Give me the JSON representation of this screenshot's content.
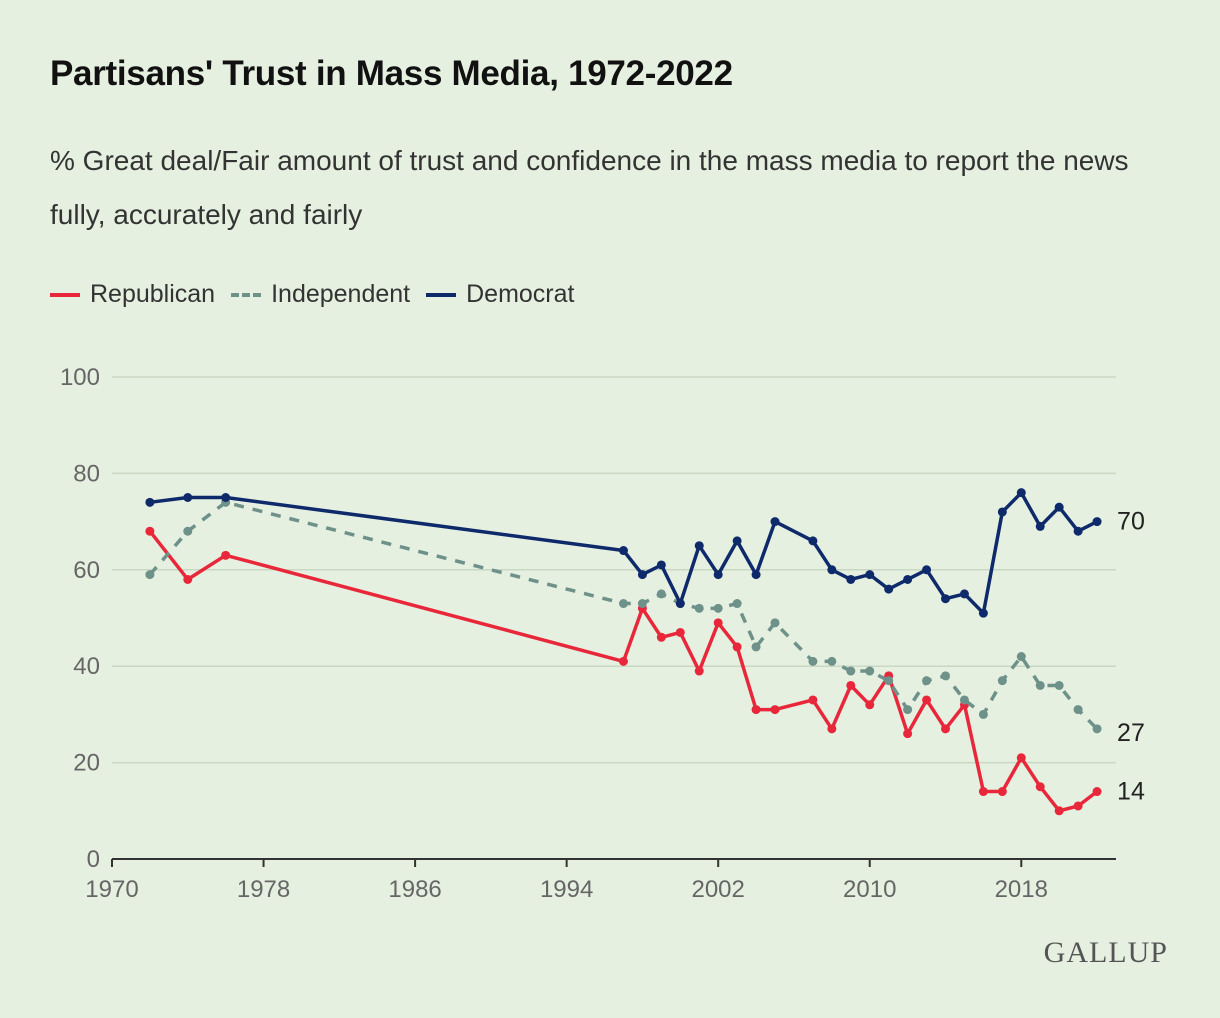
{
  "chart_data": {
    "type": "line",
    "title": "Partisans' Trust in Mass Media, 1972-2022",
    "subtitle": "% Great deal/Fair amount of trust and confidence in the mass media to report the news fully, accurately and fairly",
    "xlabel": "",
    "ylabel": "",
    "xlim": [
      1970,
      2023
    ],
    "ylim": [
      0,
      100
    ],
    "x_ticks": [
      "1970",
      "1978",
      "1986",
      "1994",
      "2002",
      "2010",
      "2018"
    ],
    "y_ticks": [
      "0",
      "20",
      "40",
      "60",
      "80",
      "100"
    ],
    "grid": true,
    "legend_position": "top-left",
    "series": [
      {
        "name": "Republican",
        "color": "#e8283a",
        "style": "solid",
        "end_label": "14",
        "x": [
          1972,
          1974,
          1976,
          1997,
          1998,
          1999,
          2000,
          2001,
          2002,
          2003,
          2004,
          2005,
          2007,
          2008,
          2009,
          2010,
          2011,
          2012,
          2013,
          2014,
          2015,
          2016,
          2017,
          2018,
          2019,
          2020,
          2021,
          2022
        ],
        "y": [
          68,
          58,
          63,
          41,
          52,
          46,
          47,
          39,
          49,
          44,
          31,
          31,
          33,
          27,
          36,
          32,
          38,
          26,
          33,
          27,
          32,
          14,
          14,
          21,
          15,
          10,
          11,
          14
        ]
      },
      {
        "name": "Independent",
        "color": "#6e918a",
        "style": "dashed",
        "end_label": "27",
        "x": [
          1972,
          1974,
          1976,
          1997,
          1998,
          1999,
          2000,
          2001,
          2002,
          2003,
          2004,
          2005,
          2007,
          2008,
          2009,
          2010,
          2011,
          2012,
          2013,
          2014,
          2015,
          2016,
          2017,
          2018,
          2019,
          2020,
          2021,
          2022
        ],
        "y": [
          59,
          68,
          74,
          53,
          53,
          55,
          53,
          52,
          52,
          53,
          44,
          49,
          41,
          41,
          39,
          39,
          37,
          31,
          37,
          38,
          33,
          30,
          37,
          42,
          36,
          36,
          31,
          27
        ]
      },
      {
        "name": "Democrat",
        "color": "#0e2a6b",
        "style": "solid",
        "end_label": "70",
        "x": [
          1972,
          1974,
          1976,
          1997,
          1998,
          1999,
          2000,
          2001,
          2002,
          2003,
          2004,
          2005,
          2007,
          2008,
          2009,
          2010,
          2011,
          2012,
          2013,
          2014,
          2015,
          2016,
          2017,
          2018,
          2019,
          2020,
          2021,
          2022
        ],
        "y": [
          74,
          75,
          75,
          64,
          59,
          61,
          53,
          65,
          59,
          66,
          59,
          70,
          66,
          60,
          58,
          59,
          56,
          58,
          60,
          54,
          55,
          51,
          72,
          76,
          69,
          73,
          68,
          70
        ]
      }
    ]
  },
  "brand": {
    "logo_text": "GALLUP"
  },
  "colors": {
    "background": "#e5f0e0",
    "grid": "#c9d8c3",
    "axis": "#333333"
  }
}
